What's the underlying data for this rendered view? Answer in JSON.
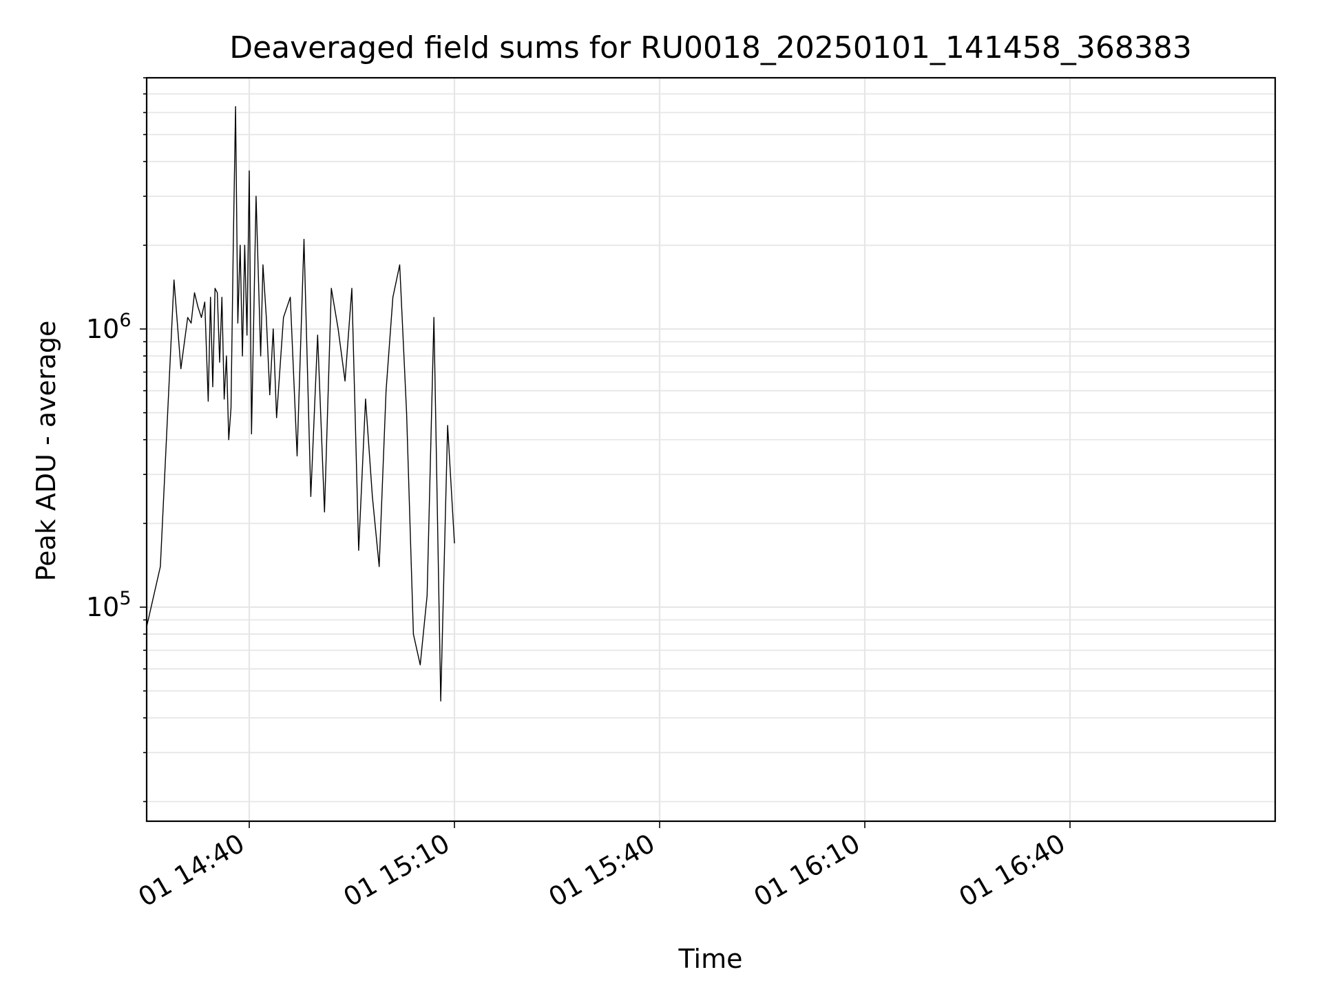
{
  "chart_data": {
    "type": "line",
    "title": "Deaveraged field sums for RU0018_20250101_141458_368383",
    "xlabel": "Time",
    "ylabel": "Peak ADU - average",
    "y_scale": "log",
    "ylim": [
      17000,
      8000000
    ],
    "xlim": [
      "2025-01-01 14:25",
      "2025-01-01 17:10"
    ],
    "grid": true,
    "legend": false,
    "line_color": "#000000",
    "x_ticks": [
      "01 14:40",
      "01 15:10",
      "01 15:40",
      "01 16:10",
      "01 16:40"
    ],
    "y_ticks": [
      {
        "base": "10",
        "exp": "5",
        "value": 100000
      },
      {
        "base": "10",
        "exp": "6",
        "value": 1000000
      }
    ],
    "series": [
      {
        "x": [
          "14:25",
          "14:27",
          "14:29",
          "14:30",
          "14:31",
          "14:31:30",
          "14:32",
          "14:32:30",
          "14:33",
          "14:33:30",
          "14:34",
          "14:34:20",
          "14:34:40",
          "14:35",
          "14:35:20",
          "14:35:40",
          "14:36",
          "14:36:20",
          "14:36:40",
          "14:37",
          "14:37:20",
          "14:37:40",
          "14:38",
          "14:38:20",
          "14:38:40",
          "14:39",
          "14:39:20",
          "14:39:40",
          "14:40",
          "14:40:20",
          "14:41",
          "14:41:40",
          "14:42",
          "14:42:30",
          "14:43",
          "14:43:30",
          "14:44",
          "14:45",
          "14:46",
          "14:47",
          "14:48",
          "14:49",
          "14:50",
          "14:51",
          "14:52",
          "14:53",
          "14:54",
          "14:55",
          "14:56",
          "14:57",
          "14:58",
          "14:59",
          "15:00",
          "15:01",
          "15:02",
          "15:03",
          "15:04",
          "15:05",
          "15:06",
          "15:07",
          "15:08",
          "15:09",
          "15:10"
        ],
        "values": [
          85000,
          140000,
          1500000,
          720000,
          1100000,
          1050000,
          1350000,
          1200000,
          1100000,
          1250000,
          550000,
          1300000,
          620000,
          1400000,
          1350000,
          760000,
          1300000,
          560000,
          800000,
          400000,
          520000,
          2000000,
          6300000,
          1050000,
          2000000,
          800000,
          2000000,
          950000,
          3700000,
          420000,
          3000000,
          800000,
          1700000,
          1100000,
          580000,
          1000000,
          480000,
          1100000,
          1300000,
          350000,
          2100000,
          250000,
          950000,
          220000,
          1400000,
          1000000,
          650000,
          1400000,
          160000,
          560000,
          250000,
          140000,
          600000,
          1300000,
          1700000,
          500000,
          80000,
          62000,
          110000,
          1100000,
          46000,
          450000,
          170000
        ]
      }
    ]
  }
}
